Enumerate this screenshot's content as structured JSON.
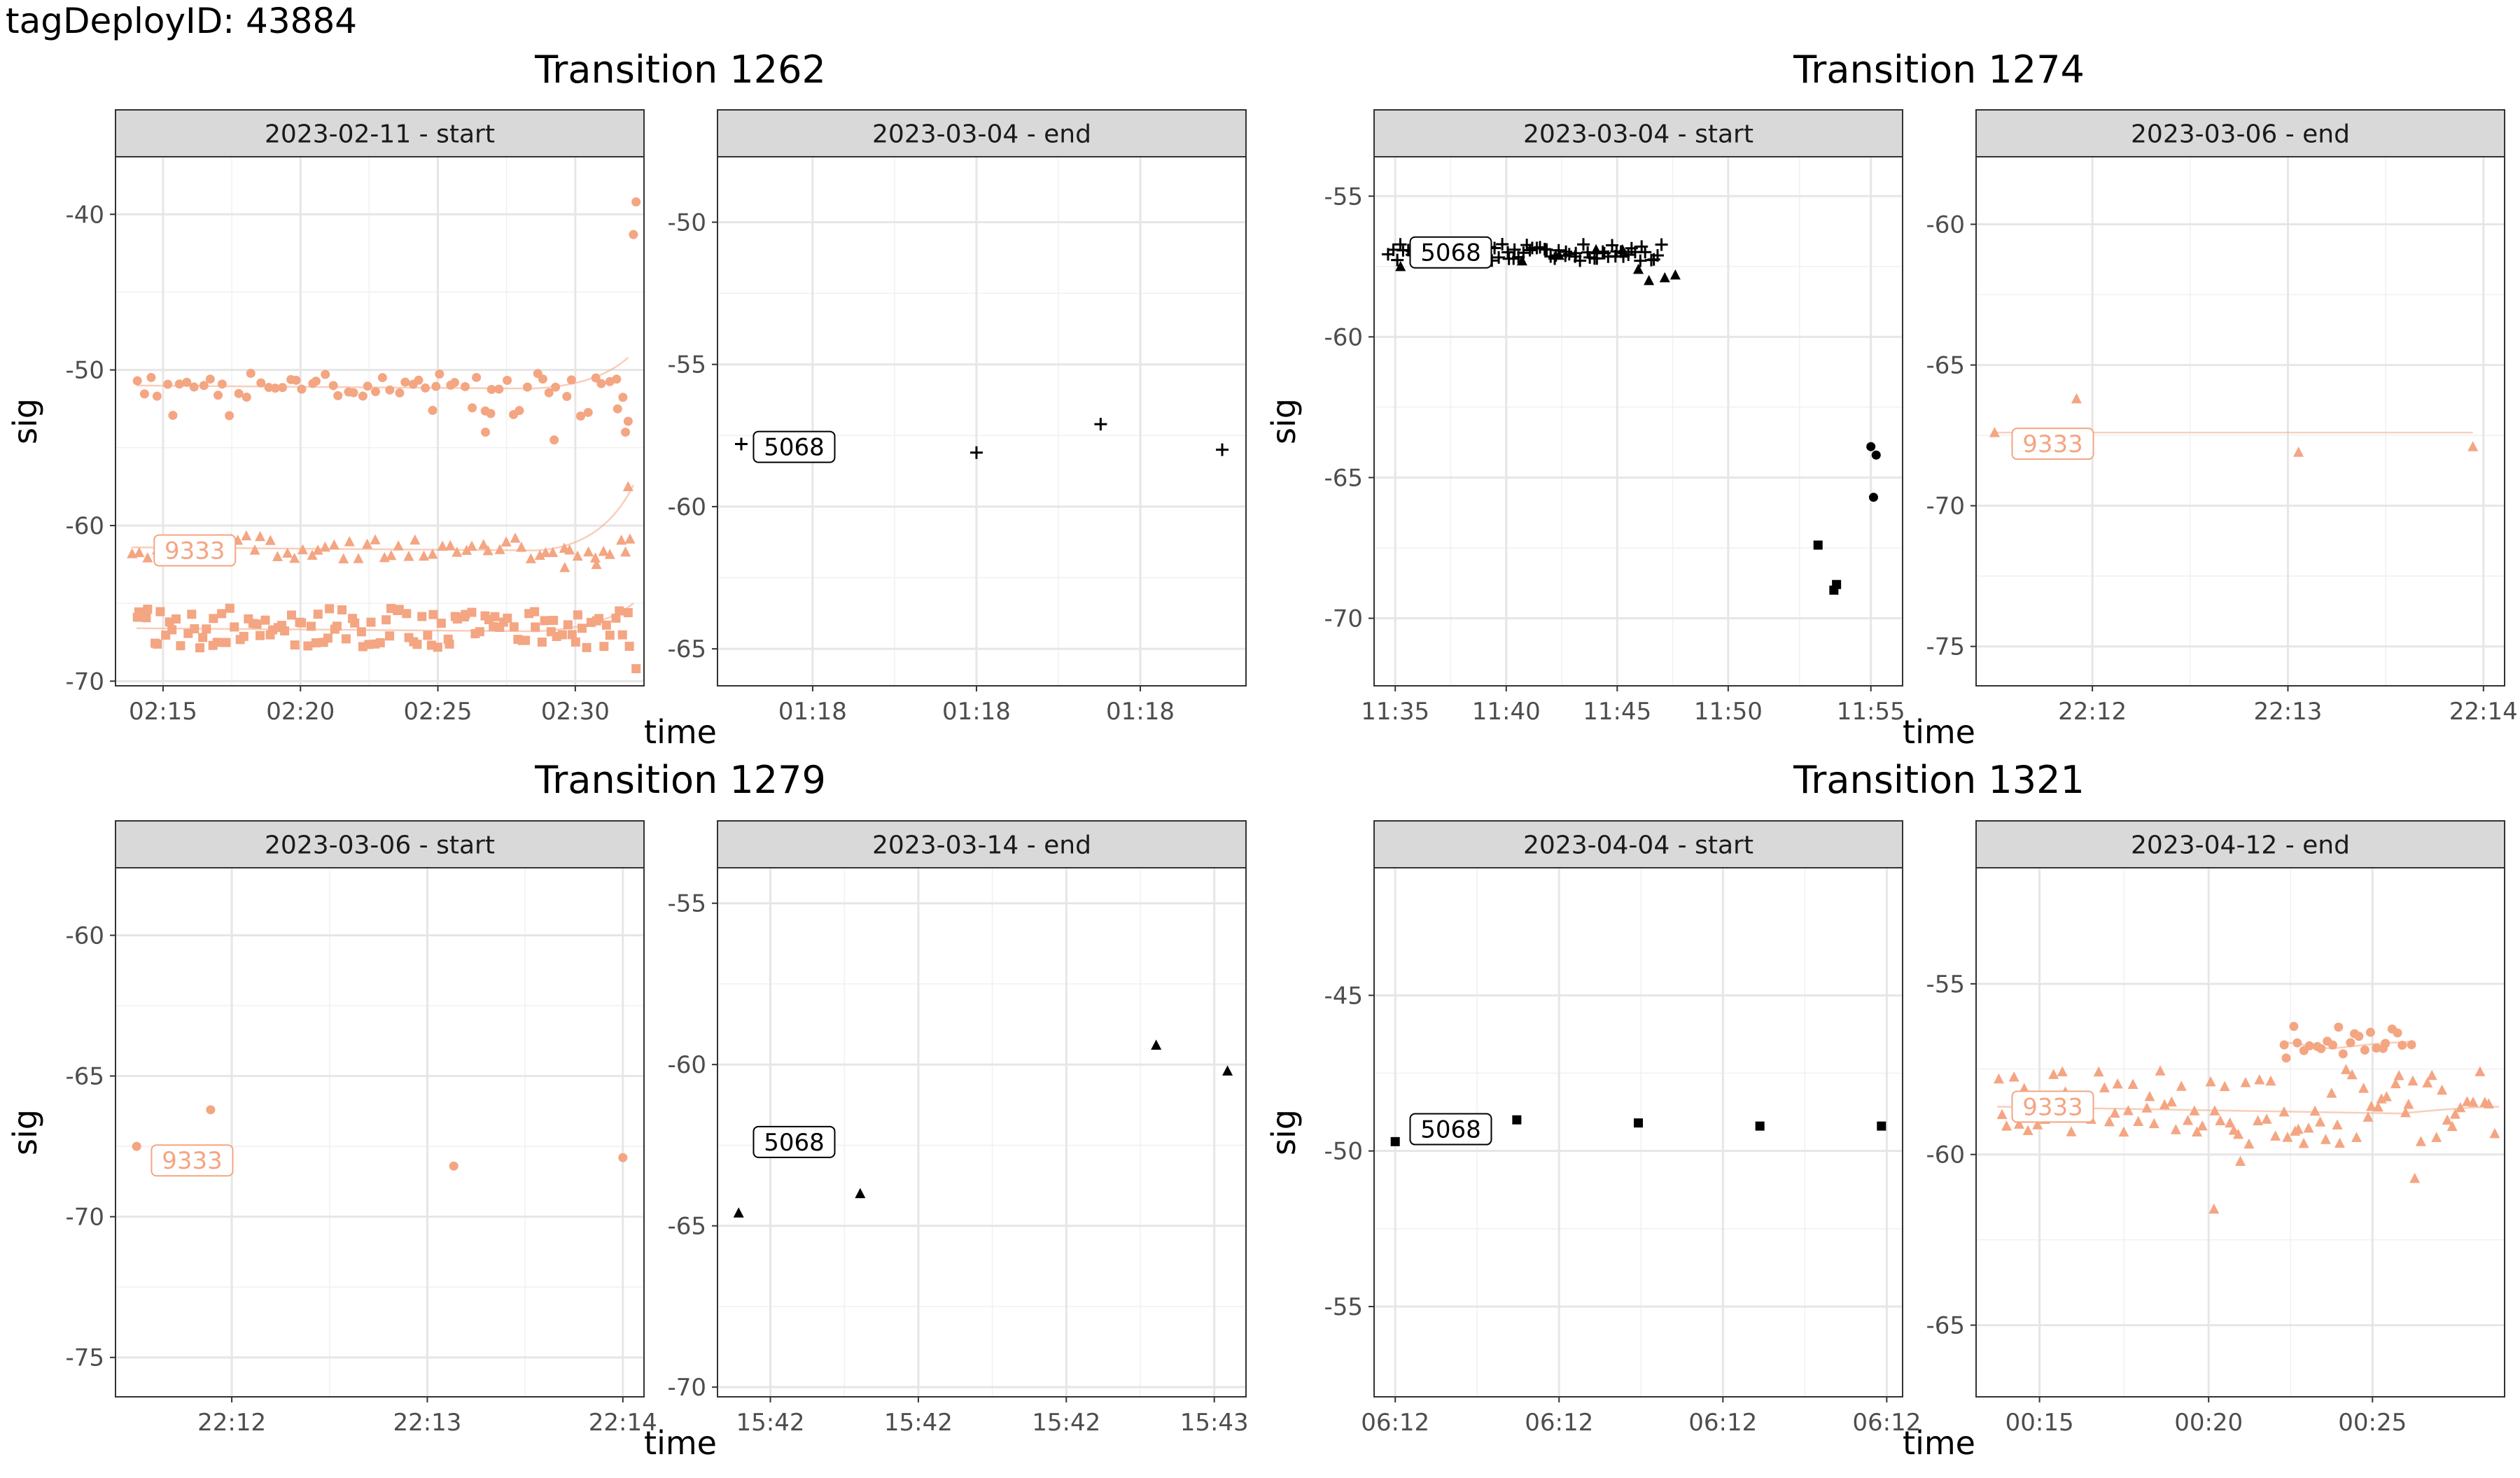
{
  "page": {
    "title": "tagDeployID: 43884"
  },
  "chart_data": [
    {
      "type": "scatter",
      "title": "Transition 1262",
      "xlabel": "time",
      "ylabel": "sig",
      "panels": [
        {
          "strip": "2023-02-11 - start",
          "ylim": [
            -70.3,
            -36.3
          ],
          "yticks": [
            -40,
            -50,
            -60,
            -70
          ],
          "xlim": [
            0,
            100
          ],
          "xticks": [
            {
              "at": 9,
              "label": "02:15"
            },
            {
              "at": 35,
              "label": "02:20"
            },
            {
              "at": 61,
              "label": "02:25"
            },
            {
              "at": 87,
              "label": "02:30"
            }
          ],
          "series": [
            {
              "name": "9333",
              "color": "#f4a582",
              "shape": "circle",
              "smooth": true,
              "band": [
                -51.2,
                -52.0
              ],
              "generate": {
                "from": 4,
                "to": 96,
                "n": 68,
                "base": -51.0,
                "spread": 1.6
              },
              "points": [
                [
                  98.5,
                  -39.2
                ],
                [
                  98.0,
                  -41.3
                ],
                [
                  97.0,
                  -53.3
                ],
                [
                  96.5,
                  -54.0
                ],
                [
                  95.0,
                  -52.5
                ],
                [
                  70,
                  -54.0
                ],
                [
                  83,
                  -54.5
                ],
                [
                  71,
                  -52.8
                ],
                [
                  60,
                  -52.6
                ]
              ]
            },
            {
              "name": "9333",
              "color": "#f4a582",
              "shape": "triangle",
              "smooth": true,
              "label": {
                "text": "9333",
                "x": 15,
                "y": -61.6
              },
              "generate": {
                "from": 3,
                "to": 97,
                "n": 62,
                "base": -61.4,
                "spread": 1.5
              },
              "points": [
                [
                  97,
                  -57.5
                ],
                [
                  96.5,
                  -61.7
                ],
                [
                  91,
                  -62.5
                ],
                [
                  85,
                  -62.7
                ]
              ]
            },
            {
              "name": "9333",
              "color": "#f4a582",
              "shape": "square",
              "smooth": true,
              "generate": {
                "from": 4,
                "to": 97,
                "n": 120,
                "base": -66.6,
                "spread": 2.6
              },
              "points": [
                [
                  98.5,
                  -69.2
                ],
                [
                  97,
                  -65.6
                ]
              ]
            }
          ]
        },
        {
          "strip": "2023-03-04 - end",
          "ylim": [
            -66.3,
            -47.7
          ],
          "yticks": [
            -50,
            -55,
            -60,
            -65
          ],
          "xlim": [
            0,
            100
          ],
          "xticks": [
            {
              "at": 18,
              "label": "01:18"
            },
            {
              "at": 49,
              "label": "01:18"
            },
            {
              "at": 80,
              "label": "01:18"
            }
          ],
          "series": [
            {
              "name": "5068",
              "color": "#000000",
              "shape": "plus",
              "label": {
                "text": "5068",
                "x": 14.5,
                "y": -57.9
              },
              "points": [
                [
                  4.5,
                  -57.8
                ],
                [
                  49,
                  -58.1
                ],
                [
                  72.5,
                  -57.1
                ],
                [
                  95.5,
                  -58.0
                ]
              ]
            }
          ]
        }
      ]
    },
    {
      "type": "scatter",
      "title": "Transition 1274",
      "xlabel": "time",
      "ylabel": "sig",
      "panels": [
        {
          "strip": "2023-03-04 - start",
          "ylim": [
            -72.4,
            -53.6
          ],
          "yticks": [
            -55,
            -60,
            -65,
            -70
          ],
          "xlim": [
            0,
            100
          ],
          "xticks": [
            {
              "at": 4,
              "label": "11:35"
            },
            {
              "at": 25,
              "label": "11:40"
            },
            {
              "at": 46,
              "label": "11:45"
            },
            {
              "at": 67,
              "label": "11:50"
            },
            {
              "at": 94,
              "label": "11:55"
            }
          ],
          "series": [
            {
              "name": "5068",
              "color": "#000000",
              "shape": "plus",
              "label": {
                "text": "5068",
                "x": 14.5,
                "y": -57.0
              },
              "generate": {
                "from": 3,
                "to": 54,
                "n": 80,
                "base": -57.0,
                "spread": 0.6
              }
            },
            {
              "name": "5068",
              "color": "#000000",
              "shape": "triangle",
              "points": [
                [
                  5,
                  -57.5
                ],
                [
                  9,
                  -57.2
                ],
                [
                  13,
                  -57.1
                ],
                [
                  20,
                  -57.2
                ],
                [
                  28,
                  -57.3
                ],
                [
                  35,
                  -57.1
                ],
                [
                  42,
                  -56.9
                ],
                [
                  47,
                  -56.9
                ],
                [
                  50,
                  -57.6
                ],
                [
                  52,
                  -58.0
                ],
                [
                  55,
                  -57.9
                ],
                [
                  57,
                  -57.8
                ]
              ]
            },
            {
              "name": "5068",
              "color": "#000000",
              "shape": "square",
              "points": [
                [
                  84,
                  -67.4
                ],
                [
                  87.5,
                  -68.8
                ],
                [
                  87,
                  -69.0
                ]
              ]
            },
            {
              "name": "5068",
              "color": "#000000",
              "shape": "circle",
              "points": [
                [
                  94,
                  -63.9
                ],
                [
                  95,
                  -64.2
                ],
                [
                  94.5,
                  -65.7
                ]
              ]
            }
          ]
        },
        {
          "strip": "2023-03-06 - end",
          "ylim": [
            -76.4,
            -57.6
          ],
          "yticks": [
            -60,
            -65,
            -70,
            -75
          ],
          "xlim": [
            0,
            100
          ],
          "xticks": [
            {
              "at": 22,
              "label": "22:12"
            },
            {
              "at": 59,
              "label": "22:13"
            },
            {
              "at": 96,
              "label": "22:14"
            }
          ],
          "series": [
            {
              "name": "9333",
              "color": "#f4a582",
              "shape": "triangle",
              "smooth": true,
              "label": {
                "text": "9333",
                "x": 14.5,
                "y": -67.8
              },
              "points": [
                [
                  3.5,
                  -67.4
                ],
                [
                  19,
                  -66.2
                ],
                [
                  61,
                  -68.1
                ],
                [
                  94,
                  -67.9
                ]
              ]
            }
          ]
        }
      ]
    },
    {
      "type": "scatter",
      "title": "Transition 1279",
      "xlabel": "time",
      "ylabel": "sig",
      "panels": [
        {
          "strip": "2023-03-06 - start",
          "ylim": [
            -76.4,
            -57.6
          ],
          "yticks": [
            -60,
            -65,
            -70,
            -75
          ],
          "xlim": [
            0,
            100
          ],
          "xticks": [
            {
              "at": 22,
              "label": "22:12"
            },
            {
              "at": 59,
              "label": "22:13"
            },
            {
              "at": 96,
              "label": "22:14"
            }
          ],
          "series": [
            {
              "name": "9333",
              "color": "#f4a582",
              "shape": "circle",
              "label": {
                "text": "9333",
                "x": 14.5,
                "y": -68.0
              },
              "points": [
                [
                  4,
                  -67.5
                ],
                [
                  18,
                  -66.2
                ],
                [
                  64,
                  -68.2
                ],
                [
                  96,
                  -67.9
                ]
              ]
            }
          ]
        },
        {
          "strip": "2023-03-14 - end",
          "ylim": [
            -70.3,
            -53.9
          ],
          "yticks": [
            -55,
            -60,
            -65,
            -70
          ],
          "xlim": [
            0,
            100
          ],
          "xticks": [
            {
              "at": 10,
              "label": "15:42"
            },
            {
              "at": 38,
              "label": "15:42"
            },
            {
              "at": 66,
              "label": "15:42"
            },
            {
              "at": 94,
              "label": "15:43"
            }
          ],
          "series": [
            {
              "name": "5068",
              "color": "#000000",
              "shape": "triangle",
              "label": {
                "text": "5068",
                "x": 14.5,
                "y": -62.4
              },
              "points": [
                [
                  4,
                  -64.6
                ],
                [
                  27,
                  -64.0
                ],
                [
                  83,
                  -59.4
                ],
                [
                  96.5,
                  -60.2
                ]
              ]
            }
          ]
        }
      ]
    },
    {
      "type": "scatter",
      "title": "Transition 1321",
      "xlabel": "time",
      "ylabel": "sig",
      "panels": [
        {
          "strip": "2023-04-04 - start",
          "ylim": [
            -57.9,
            -40.9
          ],
          "yticks": [
            -45,
            -50,
            -55
          ],
          "xlim": [
            0,
            100
          ],
          "xticks": [
            {
              "at": 4,
              "label": "06:12"
            },
            {
              "at": 35,
              "label": "06:12"
            },
            {
              "at": 66,
              "label": "06:12"
            },
            {
              "at": 97,
              "label": "06:12"
            }
          ],
          "series": [
            {
              "name": "5068",
              "color": "#000000",
              "shape": "square",
              "label": {
                "text": "5068",
                "x": 14.5,
                "y": -49.3
              },
              "points": [
                [
                  4,
                  -49.7
                ],
                [
                  27,
                  -49.0
                ],
                [
                  50,
                  -49.1
                ],
                [
                  73,
                  -49.2
                ],
                [
                  96,
                  -49.2
                ]
              ]
            }
          ]
        },
        {
          "strip": "2023-04-12 - end",
          "ylim": [
            -67.1,
            -51.6
          ],
          "yticks": [
            -55,
            -60,
            -65
          ],
          "xlim": [
            0,
            100
          ],
          "xticks": [
            {
              "at": 12,
              "label": "00:15"
            },
            {
              "at": 44,
              "label": "00:20"
            },
            {
              "at": 75,
              "label": "00:25"
            }
          ],
          "series": [
            {
              "name": "9333",
              "color": "#f4a582",
              "shape": "triangle",
              "smooth": true,
              "label": {
                "text": "9333",
                "x": 14.5,
                "y": -58.6
              },
              "generate": {
                "from": 4,
                "to": 98,
                "n": 95,
                "base": -58.6,
                "spread": 2.2
              },
              "points": [
                [
                  45,
                  -61.6
                ],
                [
                  50,
                  -60.2
                ],
                [
                  83,
                  -60.7
                ]
              ]
            },
            {
              "name": "9333",
              "color": "#f4a582",
              "shape": "circle",
              "smooth": true,
              "generate": {
                "from": 58,
                "to": 82,
                "n": 24,
                "base": -56.7,
                "spread": 1.0
              }
            }
          ]
        }
      ]
    }
  ]
}
